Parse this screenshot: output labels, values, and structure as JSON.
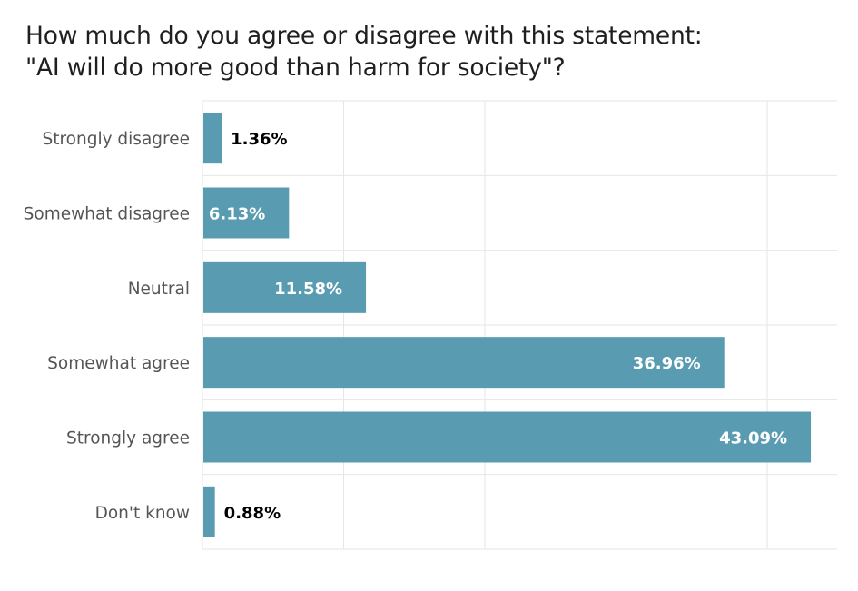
{
  "title": {
    "line1": "How much do you agree or disagree with this statement:",
    "line2": "\"AI will do more good than harm for society\"?"
  },
  "colors": {
    "bar": "#599cb2",
    "grid": "#e6e6e6",
    "category_text": "#555555",
    "label_inside": "#ffffff",
    "label_outside": "#000000",
    "title_text": "#1f1f1f"
  },
  "chart_data": {
    "type": "bar",
    "orientation": "horizontal",
    "title": "How much do you agree or disagree with this statement: \"AI will do more good than harm for society\"?",
    "categories": [
      "Strongly disagree",
      "Somewhat disagree",
      "Neutral",
      "Somewhat agree",
      "Strongly agree",
      "Don't know"
    ],
    "values": [
      1.36,
      6.13,
      11.58,
      36.96,
      43.09,
      0.88
    ],
    "value_labels": [
      "1.36%",
      "6.13%",
      "11.58%",
      "36.96%",
      "43.09%",
      "0.88%"
    ],
    "unit": "%",
    "xlim": [
      0,
      45
    ],
    "grid_x": [
      10,
      20,
      30,
      40
    ],
    "grid": true,
    "legend": "none",
    "xlabel": "",
    "ylabel": ""
  }
}
